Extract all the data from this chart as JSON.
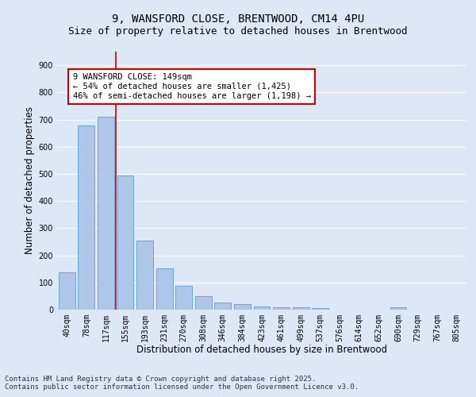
{
  "title_line1": "9, WANSFORD CLOSE, BRENTWOOD, CM14 4PU",
  "title_line2": "Size of property relative to detached houses in Brentwood",
  "xlabel": "Distribution of detached houses by size in Brentwood",
  "ylabel": "Number of detached properties",
  "categories": [
    "40sqm",
    "78sqm",
    "117sqm",
    "155sqm",
    "193sqm",
    "231sqm",
    "270sqm",
    "308sqm",
    "346sqm",
    "384sqm",
    "423sqm",
    "461sqm",
    "499sqm",
    "537sqm",
    "576sqm",
    "614sqm",
    "652sqm",
    "690sqm",
    "729sqm",
    "767sqm",
    "805sqm"
  ],
  "values": [
    138,
    678,
    710,
    495,
    253,
    153,
    87,
    51,
    25,
    20,
    12,
    8,
    8,
    5,
    1,
    0,
    0,
    8,
    0,
    0,
    0
  ],
  "bar_color": "#aec6e8",
  "bar_edge_color": "#5a9fd4",
  "bar_width": 0.85,
  "vline_color": "#cc0000",
  "annotation_text": "9 WANSFORD CLOSE: 149sqm\n← 54% of detached houses are smaller (1,425)\n46% of semi-detached houses are larger (1,198) →",
  "annotation_box_color": "#ffffff",
  "annotation_box_edge_color": "#cc0000",
  "ylim": [
    0,
    950
  ],
  "yticks": [
    0,
    100,
    200,
    300,
    400,
    500,
    600,
    700,
    800,
    900
  ],
  "fig_background_color": "#dce8f5",
  "plot_background_color": "#dce8f5",
  "grid_color": "#ffffff",
  "footer_line1": "Contains HM Land Registry data © Crown copyright and database right 2025.",
  "footer_line2": "Contains public sector information licensed under the Open Government Licence v3.0.",
  "title_fontsize": 10,
  "subtitle_fontsize": 9,
  "axis_label_fontsize": 8.5,
  "tick_fontsize": 7,
  "annotation_fontsize": 7.5,
  "footer_fontsize": 6.5
}
